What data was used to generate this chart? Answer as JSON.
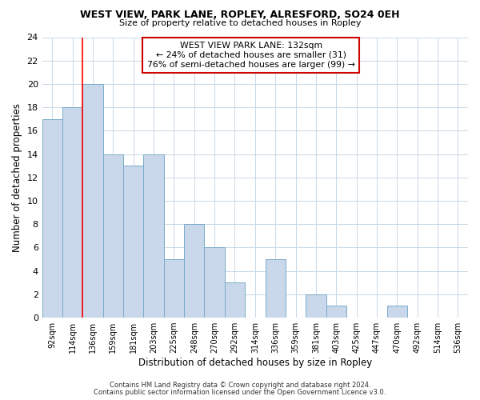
{
  "title1": "WEST VIEW, PARK LANE, ROPLEY, ALRESFORD, SO24 0EH",
  "title2": "Size of property relative to detached houses in Ropley",
  "xlabel": "Distribution of detached houses by size in Ropley",
  "ylabel": "Number of detached properties",
  "bin_labels": [
    "92sqm",
    "114sqm",
    "136sqm",
    "159sqm",
    "181sqm",
    "203sqm",
    "225sqm",
    "248sqm",
    "270sqm",
    "292sqm",
    "314sqm",
    "336sqm",
    "359sqm",
    "381sqm",
    "403sqm",
    "425sqm",
    "447sqm",
    "470sqm",
    "492sqm",
    "514sqm",
    "536sqm"
  ],
  "bar_heights": [
    17,
    18,
    20,
    14,
    13,
    14,
    5,
    8,
    6,
    3,
    0,
    5,
    0,
    2,
    1,
    0,
    0,
    1,
    0,
    0,
    0
  ],
  "bar_color": "#c8d8ea",
  "bar_edge_color": "#7aaac8",
  "red_line_index": 2,
  "ylim": [
    0,
    24
  ],
  "yticks": [
    0,
    2,
    4,
    6,
    8,
    10,
    12,
    14,
    16,
    18,
    20,
    22,
    24
  ],
  "annotation_title": "WEST VIEW PARK LANE: 132sqm",
  "annotation_line1": "← 24% of detached houses are smaller (31)",
  "annotation_line2": "76% of semi-detached houses are larger (99) →",
  "annotation_box_color": "#ffffff",
  "annotation_box_edge": "#cc0000",
  "footer1": "Contains HM Land Registry data © Crown copyright and database right 2024.",
  "footer2": "Contains public sector information licensed under the Open Government Licence v3.0.",
  "background_color": "#ffffff",
  "grid_color": "#c8d8e8"
}
